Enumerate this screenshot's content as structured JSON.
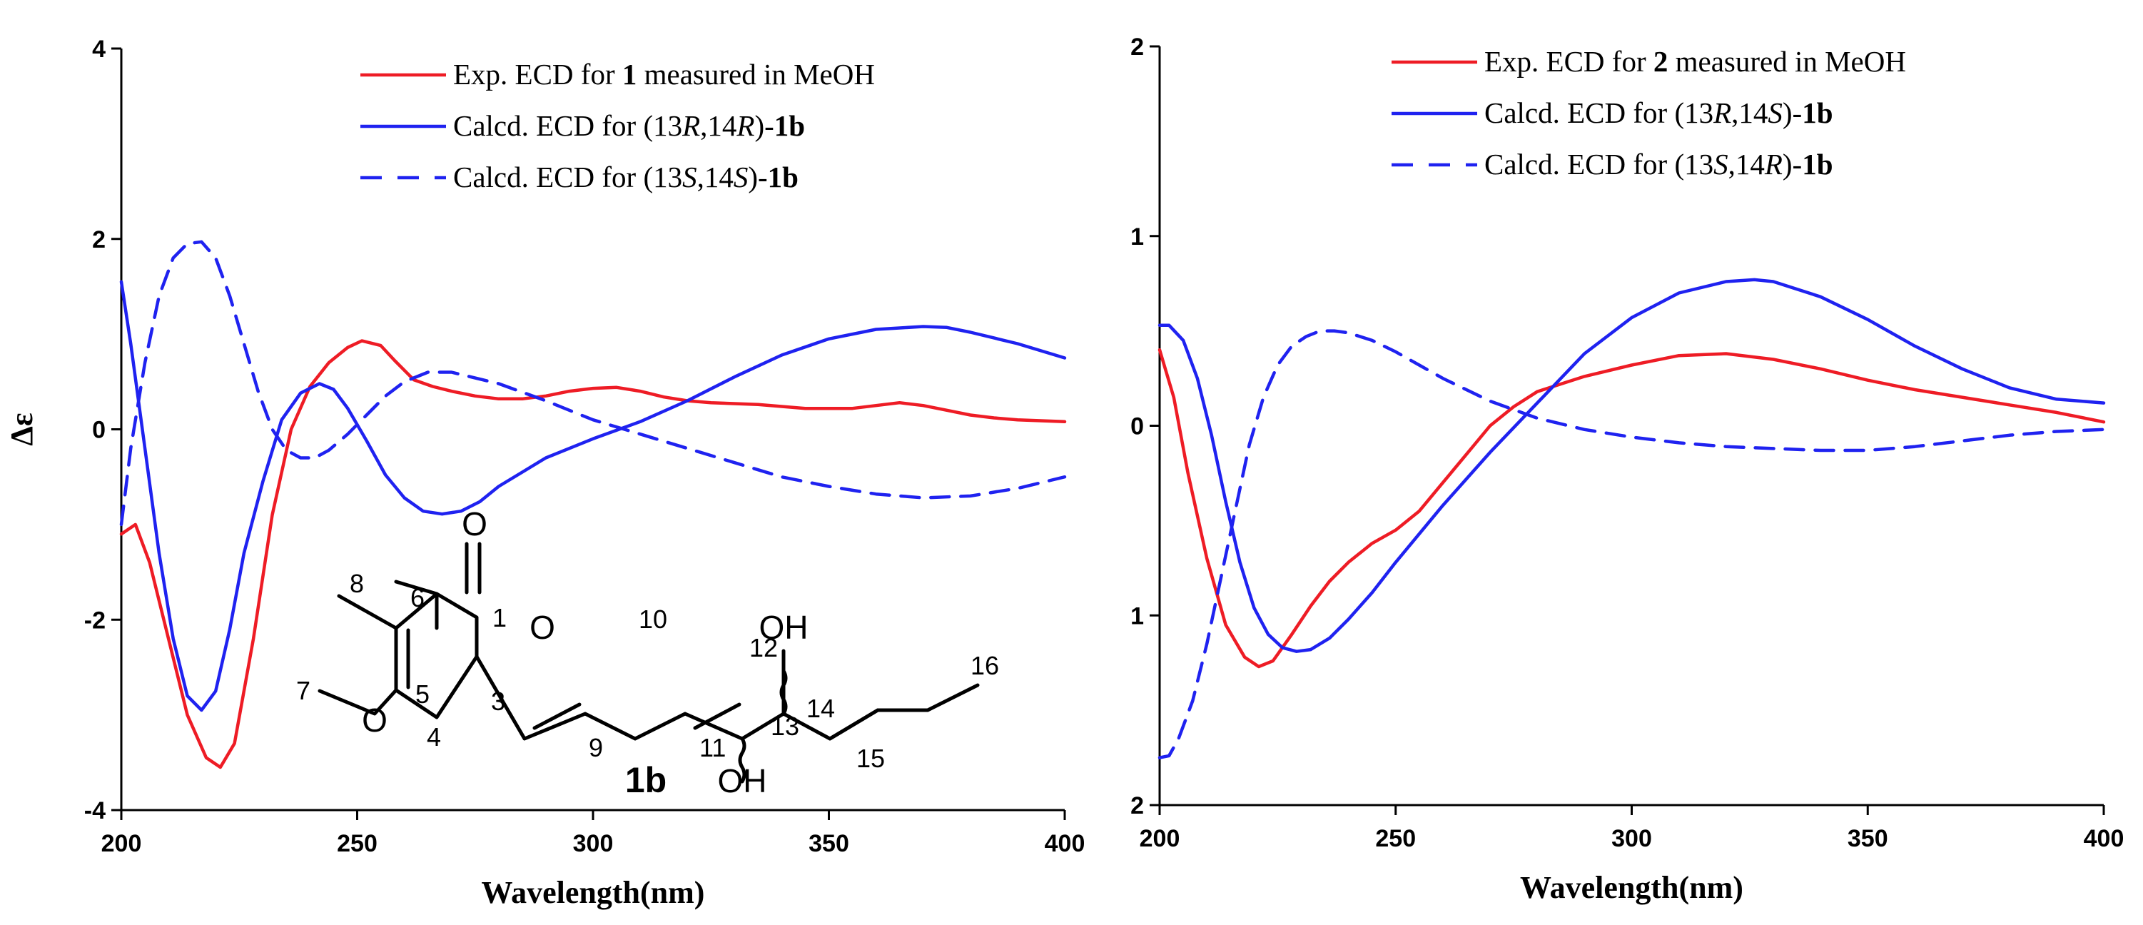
{
  "colors": {
    "exp": "#ee1c25",
    "calc_solid": "#1f22f0",
    "calc_dashed": "#1f22f0",
    "axis": "#000000"
  },
  "chart_data": [
    {
      "type": "line",
      "panel": "left",
      "xlabel": "Wavelength(nm)",
      "ylabel": "Δε",
      "xlim": [
        200,
        400
      ],
      "ylim": [
        -4,
        4
      ],
      "xticks": [
        200,
        250,
        300,
        350,
        400
      ],
      "yticks": [
        -4,
        -2,
        0,
        2,
        4
      ],
      "legend_position": "top-right",
      "series": [
        {
          "key": "exp",
          "style": "solid",
          "legend": [
            {
              "t": "Exp. ECD for ",
              "b": false,
              "i": false
            },
            {
              "t": "1",
              "b": true,
              "i": false
            },
            {
              "t": " measured in MeOH",
              "b": false,
              "i": false
            }
          ],
          "x": [
            200,
            203,
            206,
            210,
            214,
            218,
            221,
            224,
            228,
            232,
            236,
            240,
            244,
            248,
            251,
            255,
            258,
            262,
            266,
            270,
            275,
            280,
            285,
            290,
            295,
            300,
            305,
            310,
            315,
            320,
            325,
            330,
            335,
            340,
            345,
            350,
            355,
            360,
            365,
            370,
            375,
            380,
            385,
            390,
            395,
            400
          ],
          "y": [
            -1.1,
            -1.0,
            -1.4,
            -2.2,
            -3.0,
            -3.45,
            -3.55,
            -3.3,
            -2.2,
            -0.9,
            0.0,
            0.45,
            0.7,
            0.86,
            0.93,
            0.88,
            0.72,
            0.52,
            0.45,
            0.4,
            0.35,
            0.32,
            0.32,
            0.35,
            0.4,
            0.43,
            0.44,
            0.4,
            0.34,
            0.3,
            0.28,
            0.27,
            0.26,
            0.24,
            0.22,
            0.22,
            0.22,
            0.25,
            0.28,
            0.25,
            0.2,
            0.15,
            0.12,
            0.1,
            0.09,
            0.08
          ]
        },
        {
          "key": "calc_solid",
          "style": "solid",
          "legend": [
            {
              "t": "Calcd. ECD for (13",
              "b": false,
              "i": false
            },
            {
              "t": "R",
              "b": false,
              "i": true
            },
            {
              "t": ",14",
              "b": false,
              "i": false
            },
            {
              "t": "R",
              "b": false,
              "i": true
            },
            {
              "t": ")-",
              "b": false,
              "i": false
            },
            {
              "t": "1b",
              "b": true,
              "i": false
            }
          ],
          "x": [
            200,
            202,
            205,
            208,
            211,
            214,
            217,
            220,
            223,
            226,
            230,
            234,
            238,
            242,
            245,
            248,
            252,
            256,
            260,
            264,
            268,
            272,
            276,
            280,
            285,
            290,
            300,
            310,
            320,
            330,
            340,
            350,
            360,
            370,
            375,
            380,
            390,
            400
          ],
          "y": [
            1.55,
            0.9,
            -0.2,
            -1.3,
            -2.2,
            -2.8,
            -2.95,
            -2.75,
            -2.1,
            -1.3,
            -0.55,
            0.1,
            0.38,
            0.48,
            0.42,
            0.22,
            -0.12,
            -0.48,
            -0.72,
            -0.86,
            -0.89,
            -0.86,
            -0.76,
            -0.6,
            -0.45,
            -0.3,
            -0.1,
            0.08,
            0.3,
            0.55,
            0.78,
            0.95,
            1.05,
            1.08,
            1.07,
            1.02,
            0.9,
            0.75
          ]
        },
        {
          "key": "calc_dashed",
          "style": "dashed",
          "legend": [
            {
              "t": "Calcd. ECD for (13",
              "b": false,
              "i": false
            },
            {
              "t": "S",
              "b": false,
              "i": true
            },
            {
              "t": ",14",
              "b": false,
              "i": false
            },
            {
              "t": "S",
              "b": false,
              "i": true
            },
            {
              "t": ")-",
              "b": false,
              "i": false
            },
            {
              "t": "1b",
              "b": true,
              "i": false
            }
          ],
          "x": [
            200,
            202,
            205,
            208,
            211,
            214,
            217,
            220,
            223,
            226,
            229,
            232,
            235,
            238,
            241,
            244,
            248,
            252,
            256,
            260,
            265,
            270,
            280,
            290,
            300,
            310,
            320,
            330,
            340,
            350,
            360,
            370,
            380,
            390,
            400
          ],
          "y": [
            -1.0,
            -0.2,
            0.7,
            1.4,
            1.8,
            1.95,
            1.97,
            1.8,
            1.4,
            0.9,
            0.4,
            0.0,
            -0.22,
            -0.3,
            -0.3,
            -0.22,
            -0.05,
            0.15,
            0.35,
            0.5,
            0.6,
            0.6,
            0.48,
            0.3,
            0.1,
            -0.05,
            -0.2,
            -0.35,
            -0.5,
            -0.6,
            -0.68,
            -0.72,
            -0.7,
            -0.62,
            -0.5
          ]
        }
      ],
      "molecule": {
        "name": "1b",
        "atoms": [
          "O",
          "O",
          "O",
          "OH",
          "OH"
        ],
        "numbers": [
          "1",
          "3",
          "4",
          "5",
          "6",
          "7",
          "8",
          "9",
          "10",
          "11",
          "12",
          "13",
          "14",
          "15",
          "16"
        ]
      }
    },
    {
      "type": "line",
      "panel": "right",
      "xlabel": "Wavelength(nm)",
      "ylabel": "",
      "xlim": [
        200,
        400
      ],
      "ylim": [
        -2,
        2
      ],
      "xticks": [
        200,
        250,
        300,
        350,
        400
      ],
      "yticks": [
        -2,
        -1,
        0,
        1,
        2
      ],
      "ytick_labels": [
        "2",
        "1",
        "0",
        "1",
        "2"
      ],
      "legend_position": "top-right",
      "series": [
        {
          "key": "exp",
          "style": "solid",
          "legend": [
            {
              "t": "Exp. ECD for ",
              "b": false,
              "i": false
            },
            {
              "t": "2",
              "b": true,
              "i": false
            },
            {
              "t": " measured in MeOH",
              "b": false,
              "i": false
            }
          ],
          "x": [
            200,
            203,
            206,
            210,
            214,
            218,
            221,
            224,
            228,
            232,
            236,
            240,
            245,
            250,
            255,
            260,
            265,
            270,
            275,
            280,
            285,
            290,
            300,
            310,
            320,
            330,
            340,
            350,
            360,
            370,
            380,
            390,
            400
          ],
          "y": [
            0.4,
            0.15,
            -0.25,
            -0.7,
            -1.05,
            -1.22,
            -1.27,
            -1.24,
            -1.1,
            -0.95,
            -0.82,
            -0.72,
            -0.62,
            -0.55,
            -0.45,
            -0.3,
            -0.15,
            0.0,
            0.1,
            0.18,
            0.22,
            0.26,
            0.32,
            0.37,
            0.38,
            0.35,
            0.3,
            0.24,
            0.19,
            0.15,
            0.11,
            0.07,
            0.02
          ]
        },
        {
          "key": "calc_solid",
          "style": "solid",
          "legend": [
            {
              "t": "Calcd. ECD for (13",
              "b": false,
              "i": false
            },
            {
              "t": "R",
              "b": false,
              "i": true
            },
            {
              "t": ",14",
              "b": false,
              "i": false
            },
            {
              "t": "S",
              "b": false,
              "i": true
            },
            {
              "t": ")-",
              "b": false,
              "i": false
            },
            {
              "t": "1b",
              "b": true,
              "i": false
            }
          ],
          "x": [
            200,
            202,
            205,
            208,
            211,
            214,
            217,
            220,
            223,
            226,
            229,
            232,
            236,
            240,
            245,
            250,
            260,
            270,
            280,
            290,
            300,
            310,
            320,
            326,
            330,
            340,
            350,
            360,
            370,
            380,
            390,
            400
          ],
          "y": [
            0.53,
            0.53,
            0.45,
            0.25,
            -0.05,
            -0.4,
            -0.72,
            -0.96,
            -1.1,
            -1.17,
            -1.19,
            -1.18,
            -1.12,
            -1.02,
            -0.88,
            -0.72,
            -0.42,
            -0.14,
            0.12,
            0.38,
            0.57,
            0.7,
            0.76,
            0.77,
            0.76,
            0.68,
            0.56,
            0.42,
            0.3,
            0.2,
            0.14,
            0.12
          ]
        },
        {
          "key": "calc_dashed",
          "style": "dashed",
          "legend": [
            {
              "t": "Calcd. ECD for (13",
              "b": false,
              "i": false
            },
            {
              "t": "S",
              "b": false,
              "i": true
            },
            {
              "t": ",14",
              "b": false,
              "i": false
            },
            {
              "t": "R",
              "b": false,
              "i": true
            },
            {
              "t": ")-",
              "b": false,
              "i": false
            },
            {
              "t": "1b",
              "b": true,
              "i": false
            }
          ],
          "x": [
            200,
            202,
            204,
            207,
            210,
            213,
            216,
            219,
            222,
            225,
            228,
            231,
            234,
            237,
            240,
            245,
            250,
            255,
            260,
            270,
            280,
            290,
            300,
            310,
            320,
            330,
            340,
            350,
            360,
            370,
            380,
            390,
            400
          ],
          "y": [
            -1.75,
            -1.74,
            -1.65,
            -1.45,
            -1.15,
            -0.8,
            -0.45,
            -0.1,
            0.15,
            0.32,
            0.42,
            0.47,
            0.5,
            0.5,
            0.49,
            0.45,
            0.39,
            0.32,
            0.25,
            0.13,
            0.04,
            -0.02,
            -0.06,
            -0.09,
            -0.11,
            -0.12,
            -0.13,
            -0.13,
            -0.11,
            -0.08,
            -0.05,
            -0.03,
            -0.02
          ]
        }
      ]
    }
  ]
}
